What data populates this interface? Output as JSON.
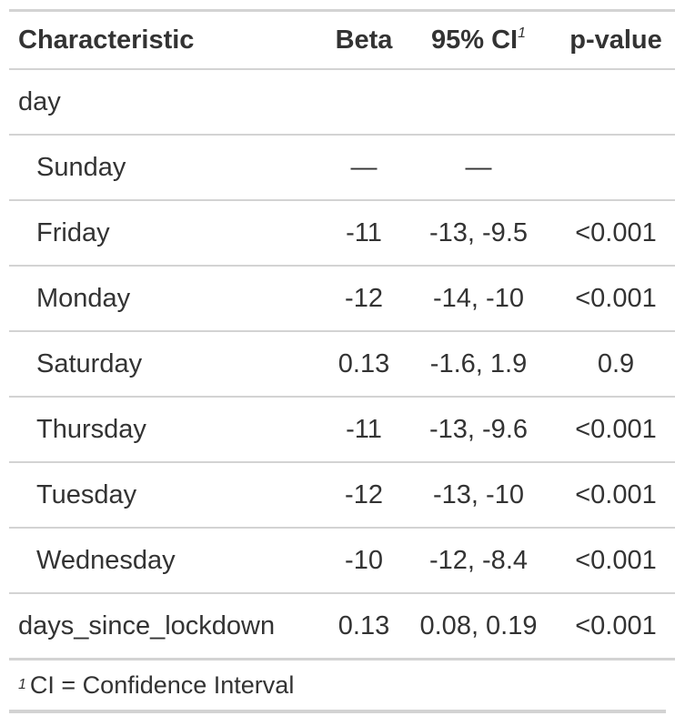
{
  "headers": {
    "characteristic": "Characteristic",
    "beta": "Beta",
    "ci": "95% CI",
    "ci_footnote_mark": "1",
    "pvalue": "p-value"
  },
  "groups": {
    "day": {
      "label": "day",
      "rows": [
        {
          "label": "Sunday",
          "beta": "—",
          "ci": "—",
          "p": ""
        },
        {
          "label": "Friday",
          "beta": "-11",
          "ci": "-13, -9.5",
          "p": "<0.001"
        },
        {
          "label": "Monday",
          "beta": "-12",
          "ci": "-14, -10",
          "p": "<0.001"
        },
        {
          "label": "Saturday",
          "beta": "0.13",
          "ci": "-1.6, 1.9",
          "p": "0.9"
        },
        {
          "label": "Thursday",
          "beta": "-11",
          "ci": "-13, -9.6",
          "p": "<0.001"
        },
        {
          "label": "Tuesday",
          "beta": "-12",
          "ci": "-13, -10",
          "p": "<0.001"
        },
        {
          "label": "Wednesday",
          "beta": "-10",
          "ci": "-12, -8.4",
          "p": "<0.001"
        }
      ]
    },
    "days_since_lockdown": {
      "label": "days_since_lockdown",
      "beta": "0.13",
      "ci": "0.08, 0.19",
      "p": "<0.001"
    }
  },
  "footnote": {
    "mark": "1",
    "text": "CI = Confidence Interval"
  }
}
